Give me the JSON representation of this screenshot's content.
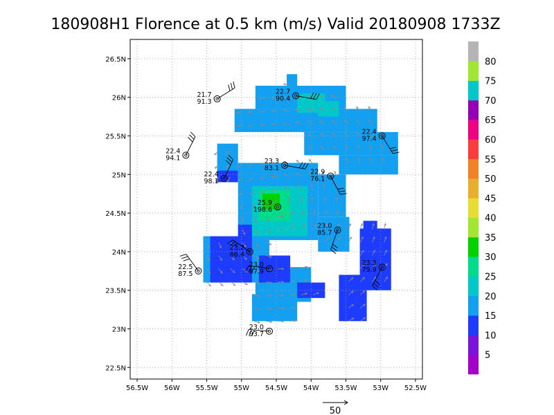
{
  "chart_data": {
    "type": "heatmap",
    "title": "180908H1 Florence at 0.5 km (m/s) Valid 20180908 1733Z",
    "xlabel": "",
    "ylabel": "",
    "xlim": [
      -56.6,
      -52.4
    ],
    "ylim": [
      22.35,
      26.75
    ],
    "x_ticks": [
      {
        "value": -56.5,
        "label": "56.5W"
      },
      {
        "value": -56.0,
        "label": "56W"
      },
      {
        "value": -55.5,
        "label": "55.5W"
      },
      {
        "value": -55.0,
        "label": "55W"
      },
      {
        "value": -54.5,
        "label": "54.5W"
      },
      {
        "value": -54.0,
        "label": "54W"
      },
      {
        "value": -53.5,
        "label": "53.5W"
      },
      {
        "value": -53.0,
        "label": "53W"
      },
      {
        "value": -52.5,
        "label": "52.5W"
      }
    ],
    "y_ticks": [
      {
        "value": 22.5,
        "label": "22.5N"
      },
      {
        "value": 23.0,
        "label": "23N"
      },
      {
        "value": 23.5,
        "label": "23.5N"
      },
      {
        "value": 24.0,
        "label": "24N"
      },
      {
        "value": 24.5,
        "label": "24.5N"
      },
      {
        "value": 25.0,
        "label": "25N"
      },
      {
        "value": 25.5,
        "label": "25.5N"
      },
      {
        "value": 26.0,
        "label": "26N"
      },
      {
        "value": 26.5,
        "label": "26.5N"
      }
    ],
    "grid": true,
    "colorbar": {
      "levels": [
        0,
        5,
        10,
        15,
        20,
        25,
        30,
        35,
        40,
        45,
        50,
        55,
        60,
        65,
        70,
        75,
        80,
        85
      ],
      "labels": [
        "5",
        "10",
        "15",
        "20",
        "25",
        "30",
        "35",
        "40",
        "45",
        "50",
        "55",
        "60",
        "65",
        "70",
        "75",
        "80"
      ],
      "colors": [
        "#a000c8",
        "#7814dc",
        "#1e3cff",
        "#14a0f0",
        "#00c8c8",
        "#00dc8c",
        "#00d200",
        "#a0e632",
        "#e6dc32",
        "#e6af2d",
        "#f08228",
        "#fa3c3c",
        "#f00082",
        "#9600b4",
        "#00c8c8",
        "#a0e632",
        "#b4b4b4"
      ]
    },
    "wind_regions": [
      {
        "lon": [
          -54.35,
          -54.2
        ],
        "lat": [
          26.15,
          26.3
        ],
        "value": 17
      },
      {
        "lon": [
          -54.8,
          -53.5
        ],
        "lat": [
          25.85,
          26.15
        ],
        "value": 18
      },
      {
        "lon": [
          -55.1,
          -53.05
        ],
        "lat": [
          25.55,
          25.85
        ],
        "value": 18
      },
      {
        "lon": [
          -54.2,
          -53.8
        ],
        "lat": [
          25.8,
          26.05
        ],
        "value": 22
      },
      {
        "lon": [
          -53.9,
          -53.6
        ],
        "lat": [
          25.75,
          25.95
        ],
        "value": 22
      },
      {
        "lon": [
          -54.1,
          -52.75
        ],
        "lat": [
          25.25,
          25.55
        ],
        "value": 18
      },
      {
        "lon": [
          -53.6,
          -52.75
        ],
        "lat": [
          25.0,
          25.25
        ],
        "value": 17
      },
      {
        "lon": [
          -55.35,
          -55.05
        ],
        "lat": [
          25.0,
          25.4
        ],
        "value": 18
      },
      {
        "lon": [
          -55.35,
          -55.05
        ],
        "lat": [
          24.9,
          25.05
        ],
        "value": 14
      },
      {
        "lon": [
          -55.05,
          -53.9
        ],
        "lat": [
          24.15,
          25.15
        ],
        "value": 18
      },
      {
        "lon": [
          -53.9,
          -53.5
        ],
        "lat": [
          24.45,
          25.0
        ],
        "value": 17
      },
      {
        "lon": [
          -53.9,
          -53.45
        ],
        "lat": [
          24.0,
          24.45
        ],
        "value": 18
      },
      {
        "lon": [
          -54.85,
          -54.05
        ],
        "lat": [
          24.2,
          24.85
        ],
        "value": 22
      },
      {
        "lon": [
          -54.75,
          -54.3
        ],
        "lat": [
          24.4,
          24.8
        ],
        "value": 27
      },
      {
        "lon": [
          -54.7,
          -54.45
        ],
        "lat": [
          24.55,
          24.75
        ],
        "value": 31
      },
      {
        "lon": [
          -55.05,
          -54.85
        ],
        "lat": [
          24.05,
          24.35
        ],
        "value": 14
      },
      {
        "lon": [
          -55.55,
          -54.6
        ],
        "lat": [
          23.6,
          24.2
        ],
        "value": 17
      },
      {
        "lon": [
          -55.45,
          -54.85
        ],
        "lat": [
          23.6,
          24.2
        ],
        "value": 13
      },
      {
        "lon": [
          -54.8,
          -54.0
        ],
        "lat": [
          23.35,
          23.8
        ],
        "value": 18
      },
      {
        "lon": [
          -54.75,
          -54.3
        ],
        "lat": [
          23.6,
          23.95
        ],
        "value": 13
      },
      {
        "lon": [
          -54.2,
          -53.8
        ],
        "lat": [
          23.4,
          23.6
        ],
        "value": 13
      },
      {
        "lon": [
          -54.85,
          -54.2
        ],
        "lat": [
          23.1,
          23.45
        ],
        "value": 18
      },
      {
        "lon": [
          -53.6,
          -53.2
        ],
        "lat": [
          23.1,
          23.7
        ],
        "value": 13
      },
      {
        "lon": [
          -53.3,
          -52.85
        ],
        "lat": [
          23.5,
          24.3
        ],
        "value": 13
      },
      {
        "lon": [
          -53.25,
          -53.05
        ],
        "lat": [
          24.2,
          24.4
        ],
        "value": 14
      }
    ],
    "stations": [
      {
        "lon": -55.35,
        "lat": 25.98,
        "line1": "21.7",
        "line2": "91.3"
      },
      {
        "lon": -54.22,
        "lat": 26.02,
        "line1": "22.7",
        "line2": "90.4"
      },
      {
        "lon": -52.98,
        "lat": 25.5,
        "line1": "22.4",
        "line2": "97.4"
      },
      {
        "lon": -55.8,
        "lat": 25.25,
        "line1": "22.4",
        "line2": "94.1"
      },
      {
        "lon": -55.25,
        "lat": 24.95,
        "line1": "22.4",
        "line2": "98.1"
      },
      {
        "lon": -54.38,
        "lat": 25.12,
        "line1": "23.3",
        "line2": "83.1"
      },
      {
        "lon": -53.72,
        "lat": 24.98,
        "line1": "22.9",
        "line2": "76.1"
      },
      {
        "lon": -54.48,
        "lat": 24.58,
        "line1": "25.9",
        "line2": "198.6"
      },
      {
        "lon": -53.62,
        "lat": 24.28,
        "line1": "23.0",
        "line2": "85.7"
      },
      {
        "lon": -54.88,
        "lat": 24.0,
        "line1": "23.2",
        "line2": "86.4"
      },
      {
        "lon": -54.6,
        "lat": 23.78,
        "line1": "23.0",
        "line2": "87.9"
      },
      {
        "lon": -55.62,
        "lat": 23.75,
        "line1": "22.5",
        "line2": "87.5"
      },
      {
        "lon": -52.98,
        "lat": 23.8,
        "line1": "23.3",
        "line2": "79.9"
      },
      {
        "lon": -54.6,
        "lat": 22.97,
        "line1": "23.0",
        "line2": "93.7"
      }
    ],
    "reference_vector": {
      "label": "50"
    }
  }
}
